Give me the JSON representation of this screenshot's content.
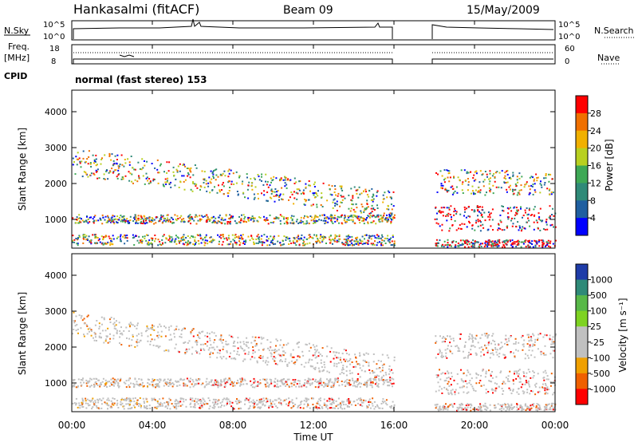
{
  "header": {
    "station": "Hankasalmi (fitACF)",
    "beam": "Beam 09",
    "date": "15/May/2009"
  },
  "left_labels": {
    "nsky": "N.Sky",
    "freq": "Freq.",
    "freq_unit": "[MHz]",
    "cpid": "CPID"
  },
  "right_labels": {
    "nsearch": "N.Search",
    "nave": "Nave"
  },
  "cpid_text": "normal (fast stereo) 153",
  "noise_axis": {
    "top": "10^5",
    "bottom": "10^0"
  },
  "freq_axis": {
    "top": "18",
    "bottom": "8"
  },
  "nave_axis": {
    "top": "60",
    "bottom": "0"
  },
  "colors": {
    "power_scale": [
      "#0000ff",
      "#1f5fa0",
      "#2f8a78",
      "#3ea855",
      "#b8d020",
      "#f0b000",
      "#f07000",
      "#ff0000"
    ],
    "velocity_scale": [
      "#1e3ca8",
      "#2f8a78",
      "#58b848",
      "#7ed321",
      "#c0c0c0",
      "#c0c0c0",
      "#f0a000",
      "#f06000",
      "#ff0000"
    ]
  },
  "chart_data": [
    {
      "type": "heatmap",
      "name": "power",
      "ylabel": "Slant Range [km]",
      "y_ticks": [
        "1000",
        "2000",
        "3000",
        "4000"
      ],
      "ylim": [
        200,
        4600
      ],
      "colorbar_label": "Power [dB]",
      "colorbar_ticks": [
        "4",
        "8",
        "12",
        "16",
        "20",
        "24",
        "28"
      ],
      "data_gap": [
        "16:00",
        "18:00"
      ]
    },
    {
      "type": "heatmap",
      "name": "velocity",
      "ylabel": "Slant Range [km]",
      "y_ticks": [
        "1000",
        "2000",
        "3000",
        "4000"
      ],
      "ylim": [
        200,
        4600
      ],
      "colorbar_label": "Velocity [m s⁻¹]",
      "colorbar_ticks": [
        "1000",
        "500",
        "100",
        "25",
        "-25",
        "-100",
        "-500",
        "-1000"
      ],
      "xlabel": "Time UT",
      "x_ticks": [
        "00:00",
        "04:00",
        "08:00",
        "12:00",
        "16:00",
        "20:00",
        "00:00"
      ]
    }
  ]
}
